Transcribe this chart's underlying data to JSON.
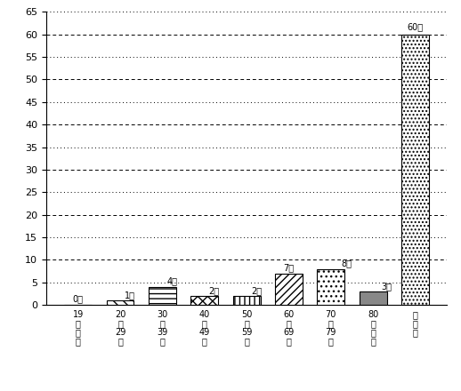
{
  "categories": [
    "19\n歳\n以\n下",
    "20\n〜\n29\n歳",
    "30\n〜\n39\n歳",
    "40\n〜\n49\n歳",
    "50\n〜\n59\n歳",
    "60\n〜\n69\n歳",
    "70\n〜\n79\n歳",
    "80\n歳\n以\n上",
    "無\n回\n答"
  ],
  "values": [
    0,
    1,
    4,
    2,
    2,
    7,
    8,
    3,
    60
  ],
  "labels": [
    "0人",
    "1人",
    "4人",
    "2人",
    "2人",
    "7人",
    "8人",
    "3人",
    "60人"
  ],
  "ylim": [
    0,
    65
  ],
  "yticks": [
    0,
    5,
    10,
    15,
    20,
    25,
    30,
    35,
    40,
    45,
    50,
    55,
    60,
    65
  ],
  "background_color": "#ffffff",
  "axis_fontsize": 8,
  "label_fontsize": 7,
  "bar_width": 0.65,
  "face_colors": [
    "white",
    "white",
    "white",
    "white",
    "white",
    "white",
    "white",
    "#888888",
    "white"
  ]
}
